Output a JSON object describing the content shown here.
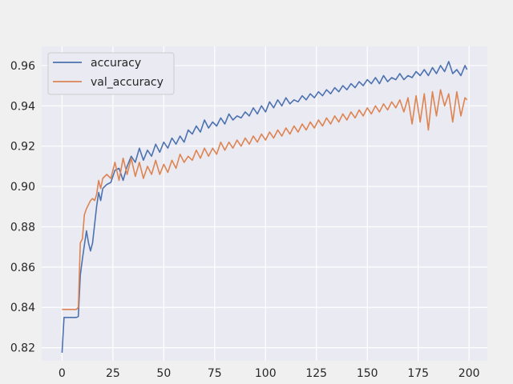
{
  "chart_data": {
    "type": "line",
    "title": "",
    "xlabel": "",
    "ylabel": "",
    "xlim": [
      -10,
      209
    ],
    "ylim": [
      0.8135,
      0.9695
    ],
    "xticks": [
      0,
      25,
      50,
      75,
      100,
      125,
      150,
      175,
      200
    ],
    "yticks": [
      0.82,
      0.84,
      0.86,
      0.88,
      0.9,
      0.92,
      0.94,
      0.96
    ],
    "ytick_labels": [
      "0.82",
      "0.84",
      "0.86",
      "0.88",
      "0.90",
      "0.92",
      "0.94",
      "0.96"
    ],
    "grid": true,
    "legend_position": "upper-left",
    "background": "#eaeaf2",
    "series": [
      {
        "name": "accuracy",
        "color": "#4c72b0",
        "x": [
          0,
          1,
          2,
          3,
          4,
          5,
          6,
          7,
          8,
          9,
          10,
          11,
          12,
          13,
          14,
          15,
          16,
          17,
          18,
          19,
          20,
          22,
          24,
          26,
          28,
          30,
          32,
          34,
          36,
          38,
          40,
          42,
          44,
          46,
          48,
          50,
          52,
          54,
          56,
          58,
          60,
          62,
          64,
          66,
          68,
          70,
          72,
          74,
          76,
          78,
          80,
          82,
          84,
          86,
          88,
          90,
          92,
          94,
          96,
          98,
          100,
          102,
          104,
          106,
          108,
          110,
          112,
          114,
          116,
          118,
          120,
          122,
          124,
          126,
          128,
          130,
          132,
          134,
          136,
          138,
          140,
          142,
          144,
          146,
          148,
          150,
          152,
          154,
          156,
          158,
          160,
          162,
          164,
          166,
          168,
          170,
          172,
          174,
          176,
          178,
          180,
          182,
          184,
          186,
          188,
          190,
          192,
          194,
          196,
          198,
          199
        ],
        "y": [
          0.8175,
          0.835,
          0.835,
          0.835,
          0.835,
          0.835,
          0.835,
          0.835,
          0.8355,
          0.856,
          0.864,
          0.871,
          0.878,
          0.872,
          0.868,
          0.872,
          0.881,
          0.89,
          0.897,
          0.893,
          0.899,
          0.901,
          0.902,
          0.908,
          0.909,
          0.903,
          0.91,
          0.915,
          0.912,
          0.919,
          0.913,
          0.918,
          0.915,
          0.921,
          0.917,
          0.922,
          0.919,
          0.924,
          0.921,
          0.925,
          0.922,
          0.928,
          0.926,
          0.93,
          0.927,
          0.933,
          0.929,
          0.932,
          0.93,
          0.934,
          0.931,
          0.936,
          0.933,
          0.935,
          0.934,
          0.937,
          0.935,
          0.939,
          0.936,
          0.94,
          0.937,
          0.942,
          0.939,
          0.943,
          0.94,
          0.944,
          0.941,
          0.943,
          0.942,
          0.945,
          0.943,
          0.946,
          0.944,
          0.947,
          0.945,
          0.948,
          0.946,
          0.949,
          0.947,
          0.95,
          0.948,
          0.951,
          0.949,
          0.952,
          0.95,
          0.953,
          0.951,
          0.954,
          0.951,
          0.955,
          0.952,
          0.954,
          0.953,
          0.956,
          0.953,
          0.955,
          0.954,
          0.957,
          0.955,
          0.958,
          0.955,
          0.959,
          0.956,
          0.96,
          0.957,
          0.962,
          0.956,
          0.958,
          0.955,
          0.96,
          0.958
        ]
      },
      {
        "name": "val_accuracy",
        "color": "#dd8452",
        "x": [
          0,
          1,
          2,
          3,
          4,
          5,
          6,
          7,
          8,
          9,
          10,
          11,
          12,
          13,
          14,
          15,
          16,
          17,
          18,
          19,
          20,
          22,
          24,
          26,
          28,
          30,
          32,
          34,
          36,
          38,
          40,
          42,
          44,
          46,
          48,
          50,
          52,
          54,
          56,
          58,
          60,
          62,
          64,
          66,
          68,
          70,
          72,
          74,
          76,
          78,
          80,
          82,
          84,
          86,
          88,
          90,
          92,
          94,
          96,
          98,
          100,
          102,
          104,
          106,
          108,
          110,
          112,
          114,
          116,
          118,
          120,
          122,
          124,
          126,
          128,
          130,
          132,
          134,
          136,
          138,
          140,
          142,
          144,
          146,
          148,
          150,
          152,
          154,
          156,
          158,
          160,
          162,
          164,
          166,
          168,
          170,
          172,
          174,
          176,
          178,
          180,
          182,
          184,
          186,
          188,
          190,
          192,
          194,
          196,
          198,
          199
        ],
        "y": [
          0.839,
          0.839,
          0.839,
          0.839,
          0.839,
          0.839,
          0.839,
          0.839,
          0.84,
          0.872,
          0.874,
          0.886,
          0.889,
          0.891,
          0.893,
          0.894,
          0.893,
          0.896,
          0.903,
          0.899,
          0.904,
          0.906,
          0.904,
          0.912,
          0.903,
          0.914,
          0.906,
          0.914,
          0.905,
          0.912,
          0.904,
          0.91,
          0.906,
          0.913,
          0.906,
          0.911,
          0.907,
          0.913,
          0.909,
          0.916,
          0.912,
          0.915,
          0.913,
          0.918,
          0.914,
          0.919,
          0.915,
          0.919,
          0.916,
          0.922,
          0.918,
          0.922,
          0.919,
          0.923,
          0.92,
          0.924,
          0.921,
          0.925,
          0.922,
          0.926,
          0.923,
          0.927,
          0.924,
          0.928,
          0.925,
          0.929,
          0.926,
          0.93,
          0.927,
          0.931,
          0.928,
          0.932,
          0.929,
          0.933,
          0.93,
          0.934,
          0.931,
          0.935,
          0.932,
          0.936,
          0.933,
          0.937,
          0.934,
          0.938,
          0.935,
          0.939,
          0.936,
          0.94,
          0.937,
          0.941,
          0.938,
          0.942,
          0.939,
          0.943,
          0.937,
          0.944,
          0.931,
          0.945,
          0.932,
          0.946,
          0.928,
          0.947,
          0.935,
          0.948,
          0.94,
          0.946,
          0.932,
          0.947,
          0.935,
          0.944,
          0.943
        ]
      }
    ]
  }
}
